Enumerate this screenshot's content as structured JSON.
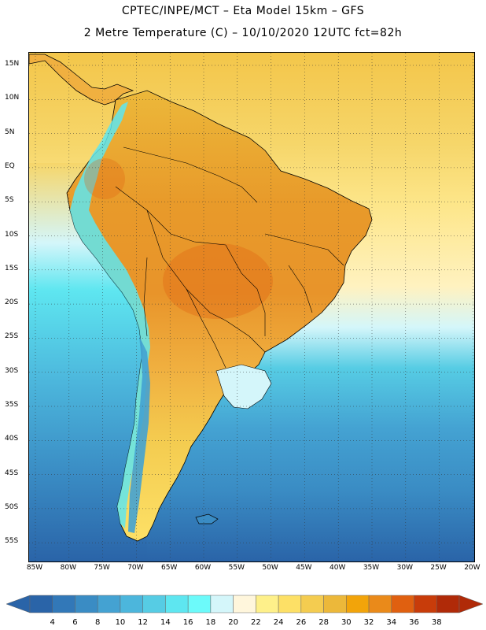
{
  "header": {
    "title_line1": "CPTEC/INPE/MCT –  Eta Model 15km – GFS",
    "title_line2": "2 Metre Temperature (C) – 10/10/2020 12UTC fct=82h"
  },
  "map": {
    "lat_labels": [
      "15N",
      "10N",
      "5N",
      "EQ",
      "5S",
      "10S",
      "15S",
      "20S",
      "25S",
      "30S",
      "35S",
      "40S",
      "45S",
      "50S",
      "55S"
    ],
    "lon_labels": [
      "85W",
      "80W",
      "75W",
      "70W",
      "65W",
      "60W",
      "55W",
      "50W",
      "45W",
      "40W",
      "35W",
      "30W",
      "25W",
      "20W"
    ],
    "gridlines": "dotted"
  },
  "colorbar": {
    "levels": [
      "4",
      "6",
      "8",
      "10",
      "12",
      "14",
      "16",
      "18",
      "20",
      "22",
      "24",
      "26",
      "28",
      "30",
      "32",
      "34",
      "36",
      "38"
    ],
    "colors": [
      "#2a64a8",
      "#3278b8",
      "#3a8cc4",
      "#44a2d2",
      "#4cb6dc",
      "#56cce4",
      "#5ee6f0",
      "#6cfafa",
      "#d4f6fa",
      "#fff6dc",
      "#fef08a",
      "#fde066",
      "#f4cc50",
      "#ecb83a",
      "#f2a40a",
      "#ea8a1a",
      "#e06010",
      "#c83c0a",
      "#b02a08"
    ],
    "under_color": "#2a64a8",
    "over_color": "#b02a08"
  }
}
